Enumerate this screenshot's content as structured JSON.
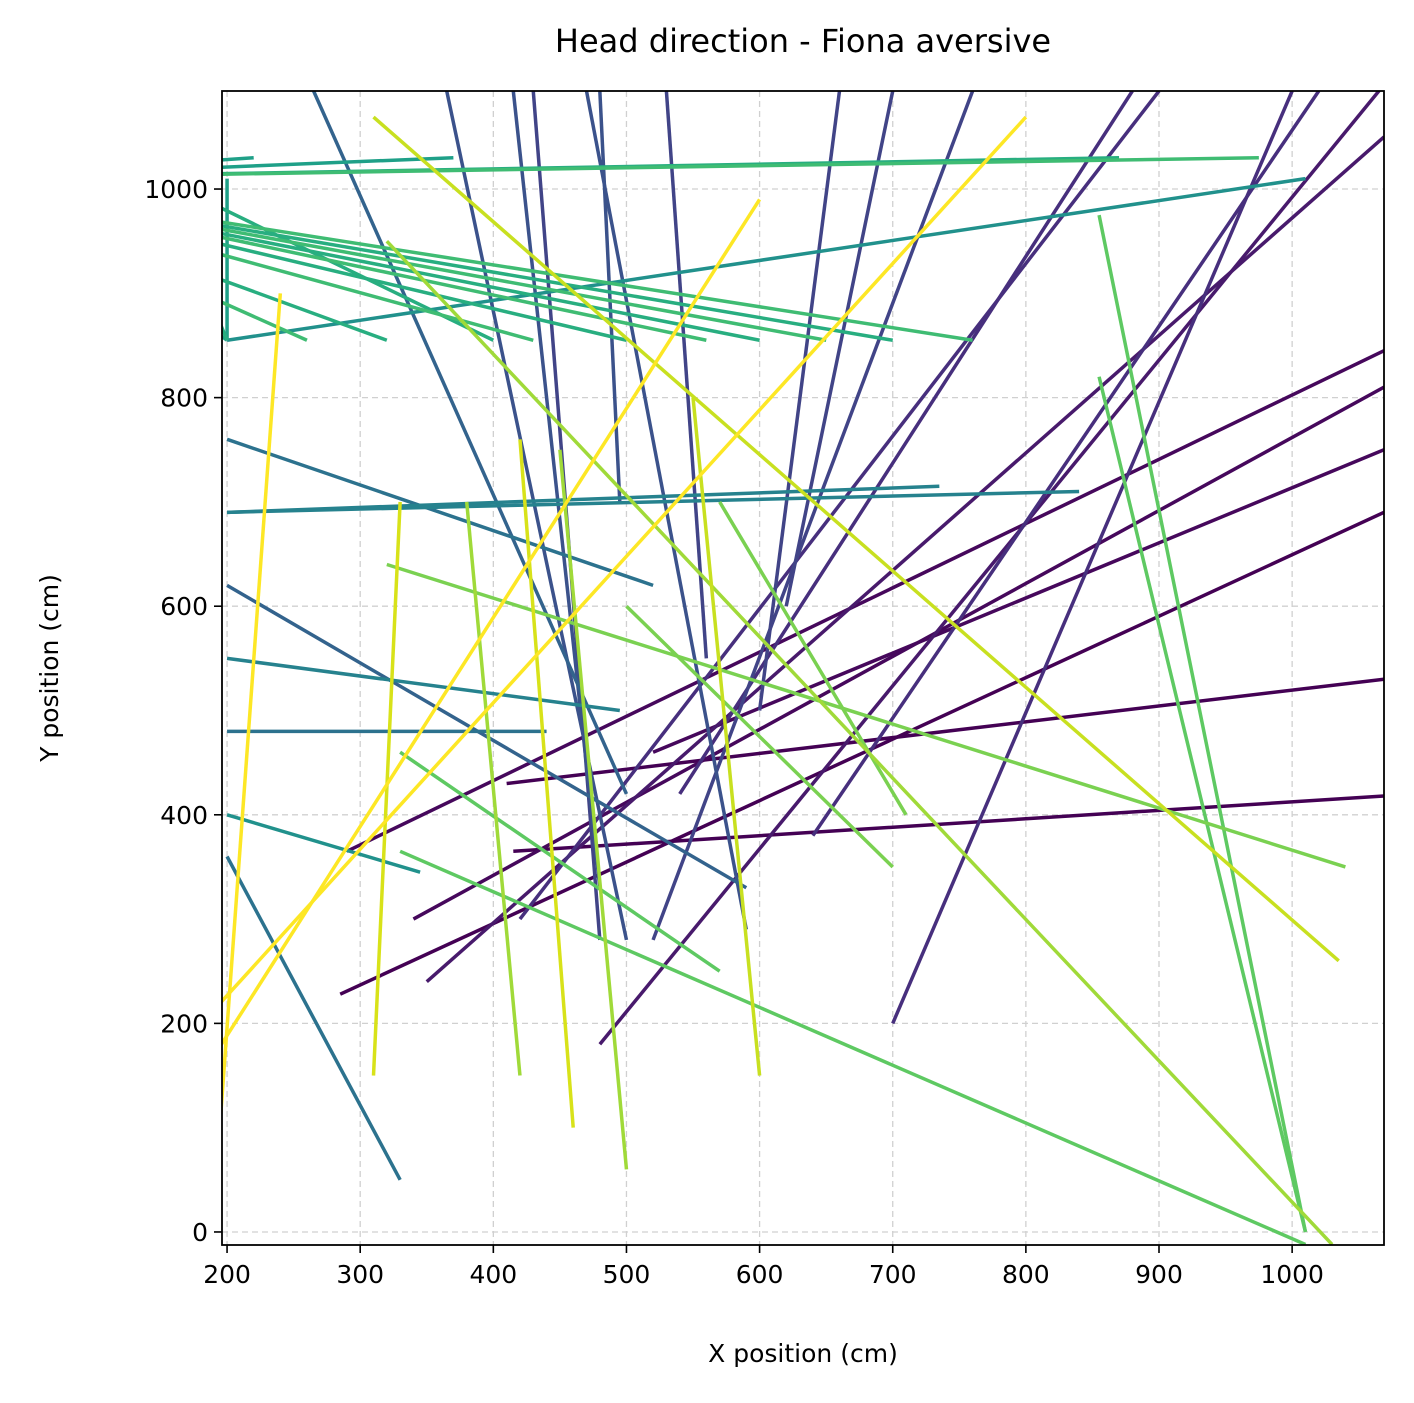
{
  "chart_data": {
    "type": "segments",
    "title": "Head direction - Fiona aversive",
    "x_label": "X position (cm)",
    "y_label": "Y position (cm)",
    "xlim": [
      196.2,
      1069
    ],
    "ylim": [
      -12.5,
      1094
    ],
    "xticks": [
      200,
      300,
      400,
      500,
      600,
      700,
      800,
      900,
      1000
    ],
    "yticks": [
      0,
      200,
      400,
      600,
      800,
      1000
    ],
    "grid": true,
    "linewidth": 3.5,
    "segments": [
      {
        "x": [
          415,
          1069
        ],
        "y": [
          365,
          418
        ],
        "color": "#440154"
      },
      {
        "x": [
          410,
          1069
        ],
        "y": [
          430,
          530
        ],
        "color": "#440154"
      },
      {
        "x": [
          285,
          1069
        ],
        "y": [
          228,
          690
        ],
        "color": "#440154"
      },
      {
        "x": [
          290,
          1069
        ],
        "y": [
          365,
          845
        ],
        "color": "#46085c"
      },
      {
        "x": [
          520,
          1069
        ],
        "y": [
          460,
          750
        ],
        "color": "#46085c"
      },
      {
        "x": [
          340,
          1069
        ],
        "y": [
          300,
          810
        ],
        "color": "#46085c"
      },
      {
        "x": [
          350,
          1069
        ],
        "y": [
          240,
          1050
        ],
        "color": "#481a6c"
      },
      {
        "x": [
          480,
          1069
        ],
        "y": [
          180,
          1100
        ],
        "color": "#481a6c"
      },
      {
        "x": [
          420,
          900
        ],
        "y": [
          300,
          1094
        ],
        "color": "#472f7d"
      },
      {
        "x": [
          540,
          880
        ],
        "y": [
          420,
          1094
        ],
        "color": "#472f7d"
      },
      {
        "x": [
          640,
          1020
        ],
        "y": [
          380,
          1094
        ],
        "color": "#472f7d"
      },
      {
        "x": [
          700,
          1000
        ],
        "y": [
          200,
          1094
        ],
        "color": "#472f7d"
      },
      {
        "x": [
          480,
          430
        ],
        "y": [
          280,
          1094
        ],
        "color": "#414487"
      },
      {
        "x": [
          520,
          760
        ],
        "y": [
          280,
          1094
        ],
        "color": "#414487"
      },
      {
        "x": [
          560,
          530
        ],
        "y": [
          550,
          1094
        ],
        "color": "#414487"
      },
      {
        "x": [
          620,
          700
        ],
        "y": [
          600,
          1094
        ],
        "color": "#414487"
      },
      {
        "x": [
          600,
          660
        ],
        "y": [
          500,
          1094
        ],
        "color": "#414487"
      },
      {
        "x": [
          480,
          415
        ],
        "y": [
          330,
          1094
        ],
        "color": "#3b528b"
      },
      {
        "x": [
          500,
          365
        ],
        "y": [
          280,
          1094
        ],
        "color": "#3b528b"
      },
      {
        "x": [
          495,
          480
        ],
        "y": [
          700,
          1094
        ],
        "color": "#3b528b"
      },
      {
        "x": [
          590,
          470
        ],
        "y": [
          290,
          1094
        ],
        "color": "#3b528b"
      },
      {
        "x": [
          265,
          500
        ],
        "y": [
          1094,
          420
        ],
        "color": "#33638d"
      },
      {
        "x": [
          200,
          590
        ],
        "y": [
          620,
          330
        ],
        "color": "#33638d"
      },
      {
        "x": [
          200,
          520
        ],
        "y": [
          760,
          620
        ],
        "color": "#2c728e"
      },
      {
        "x": [
          200,
          440
        ],
        "y": [
          480,
          480
        ],
        "color": "#2c728e"
      },
      {
        "x": [
          200,
          330
        ],
        "y": [
          360,
          50
        ],
        "color": "#2c728e"
      },
      {
        "x": [
          200,
          495
        ],
        "y": [
          550,
          500
        ],
        "color": "#26828e"
      },
      {
        "x": [
          200,
          735
        ],
        "y": [
          690,
          715
        ],
        "color": "#26828e"
      },
      {
        "x": [
          200,
          840
        ],
        "y": [
          690,
          710
        ],
        "color": "#26828e"
      },
      {
        "x": [
          200,
          1010
        ],
        "y": [
          855,
          1010
        ],
        "color": "#21918c"
      },
      {
        "x": [
          200,
          345
        ],
        "y": [
          400,
          345
        ],
        "color": "#21918c"
      },
      {
        "x": [
          200,
          200
        ],
        "y": [
          855,
          1010
        ],
        "color": "#1fa088"
      },
      {
        "x": [
          200,
          30
        ],
        "y": [
          855,
          1010
        ],
        "color": "#1fa088"
      },
      {
        "x": [
          220,
          -12
        ],
        "y": [
          1030,
          1010
        ],
        "color": "#1fa088"
      },
      {
        "x": [
          370,
          -12
        ],
        "y": [
          1030,
          1010
        ],
        "color": "#1fa088"
      },
      {
        "x": [
          200,
          150
        ],
        "y": [
          855,
          1010
        ],
        "color": "#28ae80"
      },
      {
        "x": [
          400,
          150
        ],
        "y": [
          855,
          1010
        ],
        "color": "#28ae80"
      },
      {
        "x": [
          320,
          -12
        ],
        "y": [
          855,
          1010
        ],
        "color": "#28ae80"
      },
      {
        "x": [
          600,
          -12
        ],
        "y": [
          855,
          1010
        ],
        "color": "#28ae80"
      },
      {
        "x": [
          500,
          -12
        ],
        "y": [
          855,
          1010
        ],
        "color": "#28ae80"
      },
      {
        "x": [
          700,
          -12
        ],
        "y": [
          855,
          1010
        ],
        "color": "#28ae80"
      },
      {
        "x": [
          870,
          -12
        ],
        "y": [
          1030,
          1010
        ],
        "color": "#28ae80"
      },
      {
        "x": [
          260,
          -12
        ],
        "y": [
          855,
          1010
        ],
        "color": "#3fbc73"
      },
      {
        "x": [
          430,
          -12
        ],
        "y": [
          855,
          1010
        ],
        "color": "#3fbc73"
      },
      {
        "x": [
          650,
          -12
        ],
        "y": [
          855,
          1010
        ],
        "color": "#3fbc73"
      },
      {
        "x": [
          760,
          -12
        ],
        "y": [
          855,
          1010
        ],
        "color": "#3fbc73"
      },
      {
        "x": [
          560,
          -12
        ],
        "y": [
          855,
          1010
        ],
        "color": "#3fbc73"
      },
      {
        "x": [
          975,
          -12
        ],
        "y": [
          1030,
          1010
        ],
        "color": "#3fbc73"
      },
      {
        "x": [
          330,
          1010
        ],
        "y": [
          365,
          -12
        ],
        "color": "#5ec962"
      },
      {
        "x": [
          855,
          1010
        ],
        "y": [
          820,
          0
        ],
        "color": "#5ec962"
      },
      {
        "x": [
          330,
          570
        ],
        "y": [
          460,
          250
        ],
        "color": "#5ec962"
      },
      {
        "x": [
          855,
          1010
        ],
        "y": [
          975,
          0
        ],
        "color": "#5ec962"
      },
      {
        "x": [
          320,
          1040
        ],
        "y": [
          640,
          350
        ],
        "color": "#7ad151"
      },
      {
        "x": [
          570,
          710
        ],
        "y": [
          700,
          400
        ],
        "color": "#7ad151"
      },
      {
        "x": [
          500,
          700
        ],
        "y": [
          600,
          350
        ],
        "color": "#7ad151"
      },
      {
        "x": [
          320,
          1030
        ],
        "y": [
          950,
          -12
        ],
        "color": "#a0da39"
      },
      {
        "x": [
          450,
          500
        ],
        "y": [
          750,
          60
        ],
        "color": "#a0da39"
      },
      {
        "x": [
          380,
          420
        ],
        "y": [
          700,
          150
        ],
        "color": "#a0da39"
      },
      {
        "x": [
          310,
          1035
        ],
        "y": [
          1069,
          260
        ],
        "color": "#c8e020"
      },
      {
        "x": [
          550,
          600
        ],
        "y": [
          800,
          150
        ],
        "color": "#c8e020"
      },
      {
        "x": [
          330,
          310
        ],
        "y": [
          700,
          150
        ],
        "color": "#d8e219"
      },
      {
        "x": [
          420,
          460
        ],
        "y": [
          760,
          100
        ],
        "color": "#d8e219"
      },
      {
        "x": [
          240,
          190
        ],
        "y": [
          900,
          20
        ],
        "color": "#fde725"
      },
      {
        "x": [
          600,
          100
        ],
        "y": [
          990,
          -12
        ],
        "color": "#fde725"
      },
      {
        "x": [
          800,
          30
        ],
        "y": [
          1069,
          -12
        ],
        "color": "#fde725"
      }
    ]
  }
}
